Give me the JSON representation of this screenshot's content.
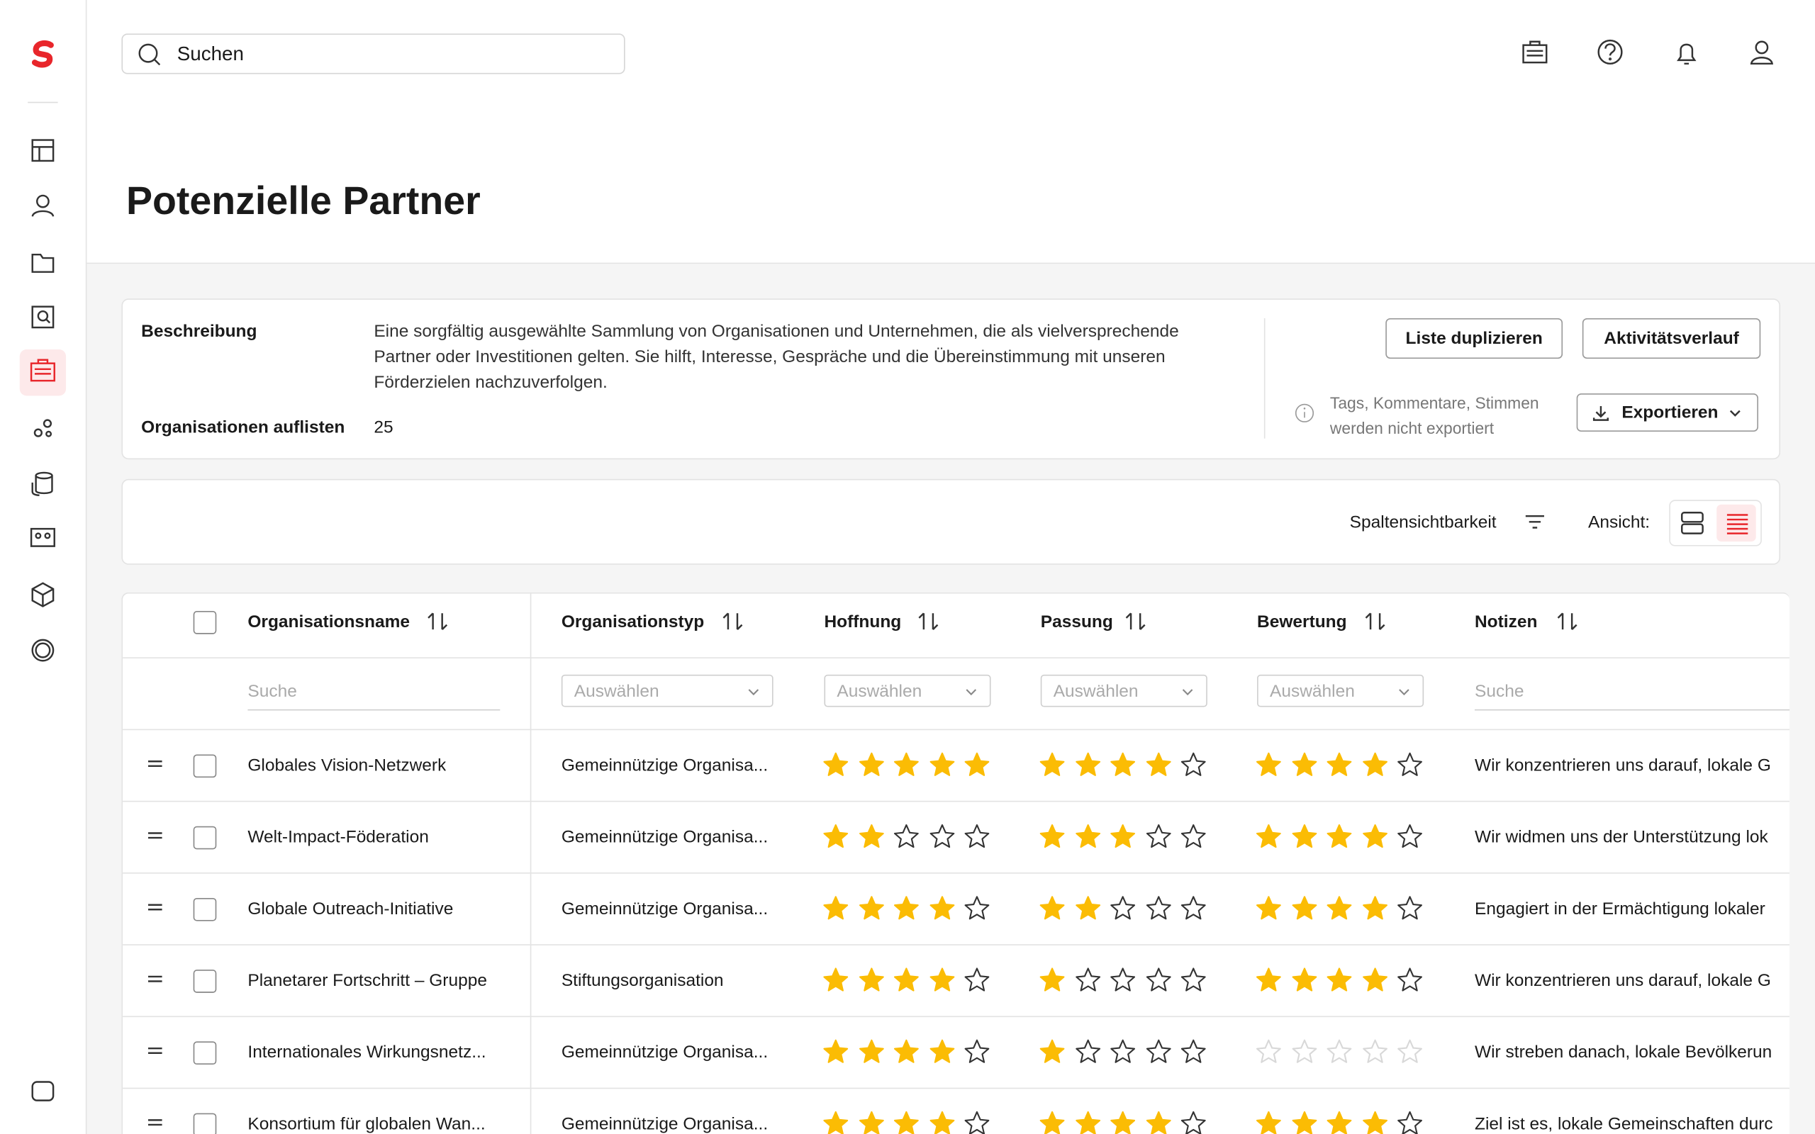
{
  "search": {
    "placeholder": "Suchen"
  },
  "header": {
    "title": "Potenzielle Partner"
  },
  "details": {
    "description_label": "Beschreibung",
    "description": "Eine sorgfältig ausgewählte Sammlung von Organisationen und Unternehmen, die als vielversprechende Partner oder Investitionen gelten. Sie hilft, Interesse, Gespräche und die Übereinstimmung mit unseren Förderzielen nachzuverfolgen.",
    "count_label": "Organisationen auflisten",
    "count": 25,
    "buttons": [
      "Liste duplizieren",
      "Aktivitätsverlauf"
    ],
    "export_note": "Tags, Kommentare, Stimmen werden nicht exportiert",
    "export_button": "Exportieren"
  },
  "toolbar": {
    "column_visibility": "Spaltensichtbarkeit",
    "view_label": "Ansicht:"
  },
  "table": {
    "columns": [
      "Organisationsname",
      "Organisationstyp",
      "Hoffnung",
      "Passung",
      "Bewertung",
      "Notizen"
    ],
    "filters": [
      "Suche",
      "Auswählen",
      "Auswählen",
      "Auswählen",
      "Auswählen",
      "Suche"
    ],
    "rows": [
      {
        "name": "Globales Vision-Netzwerk",
        "type": "Gemeinnützige Organisa...",
        "hope": 5,
        "fit": 4,
        "rating": 4,
        "notes": "Wir konzentrieren uns darauf, lokale G"
      },
      {
        "name": "Welt-Impact-Föderation",
        "type": "Gemeinnützige Organisa...",
        "hope": 2,
        "fit": 3,
        "rating": 4,
        "notes": "Wir widmen uns der Unterstützung lok"
      },
      {
        "name": "Globale Outreach-Initiative",
        "type": "Gemeinnützige Organisa...",
        "hope": 4,
        "fit": 2,
        "rating": 4,
        "notes": "Engagiert in der Ermächtigung lokaler"
      },
      {
        "name": "Planetarer Fortschritt – Gruppe",
        "type": "Stiftungsorganisation",
        "hope": 4,
        "fit": 1,
        "rating": 4,
        "notes": "Wir konzentrieren uns darauf, lokale G"
      },
      {
        "name": "Internationales Wirkungsnetz...",
        "type": "Gemeinnützige Organisa...",
        "hope": 4,
        "fit": 1,
        "rating": 0,
        "notes": "Wir streben danach, lokale Bevölkerun"
      },
      {
        "name": "Konsortium für globalen Wan...",
        "type": "Gemeinnützige Organisa...",
        "hope": 4,
        "fit": 4,
        "rating": 4,
        "notes": "Ziel ist es, lokale Gemeinschaften durc"
      }
    ]
  }
}
